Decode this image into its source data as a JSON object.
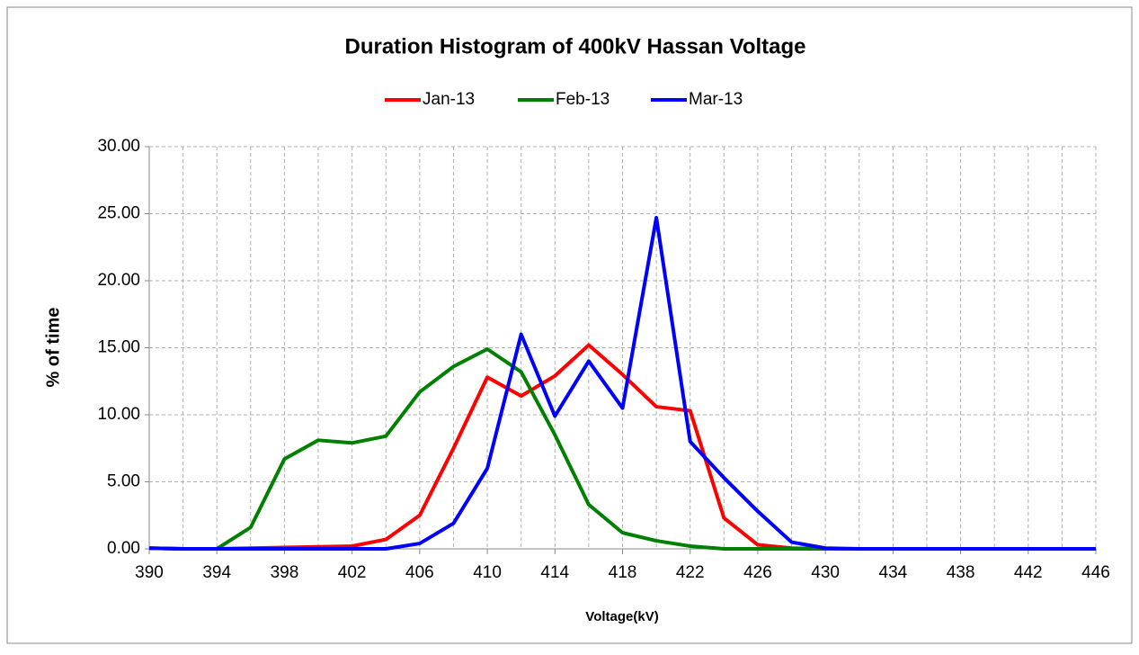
{
  "chart_data": {
    "type": "line",
    "title": "Duration Histogram of 400kV Hassan Voltage",
    "x_label": "Voltage(kV)",
    "y_label": "% of time",
    "x": [
      390,
      392,
      394,
      396,
      398,
      400,
      402,
      404,
      406,
      408,
      410,
      412,
      414,
      416,
      418,
      420,
      422,
      424,
      426,
      428,
      430,
      432,
      434,
      436,
      438,
      440,
      442,
      444,
      446
    ],
    "series": [
      {
        "name": "Jan-13",
        "color": "#ff0000",
        "values": [
          0.05,
          0,
          0,
          0.05,
          0.1,
          0.15,
          0.2,
          0.7,
          2.5,
          7.5,
          12.8,
          11.4,
          12.9,
          15.2,
          13,
          10.6,
          10.3,
          2.3,
          0.3,
          0.05,
          0,
          0,
          0,
          0,
          0,
          0,
          0,
          0,
          0
        ]
      },
      {
        "name": "Feb-13",
        "color": "#008000",
        "values": [
          0.05,
          0,
          0,
          1.6,
          6.7,
          8.1,
          7.9,
          8.4,
          11.7,
          13.6,
          14.9,
          13.2,
          8.5,
          3.3,
          1.2,
          0.6,
          0.2,
          0,
          0,
          0,
          0,
          0,
          0,
          0,
          0,
          0,
          0,
          0,
          0
        ]
      },
      {
        "name": "Mar-13",
        "color": "#0000ff",
        "values": [
          0.05,
          0,
          0,
          0,
          0,
          0,
          0,
          0,
          0.4,
          1.9,
          6,
          16,
          9.9,
          14,
          10.5,
          24.7,
          8,
          5.3,
          2.8,
          0.5,
          0.05,
          0,
          0,
          0,
          0,
          0,
          0,
          0,
          0
        ]
      }
    ],
    "xlim": [
      390,
      446
    ],
    "xticks": [
      390,
      394,
      398,
      402,
      406,
      410,
      414,
      418,
      422,
      426,
      430,
      434,
      438,
      442,
      446
    ],
    "ylim": [
      0,
      30
    ],
    "yticks": [
      {
        "value": 0,
        "label": "0.00"
      },
      {
        "value": 5,
        "label": "5.00"
      },
      {
        "value": 10,
        "label": "10.00"
      },
      {
        "value": 15,
        "label": "15.00"
      },
      {
        "value": 20,
        "label": "20.00"
      },
      {
        "value": 25,
        "label": "25.00"
      },
      {
        "value": 30,
        "label": "30.00"
      }
    ],
    "grid": true,
    "legend": "top"
  }
}
